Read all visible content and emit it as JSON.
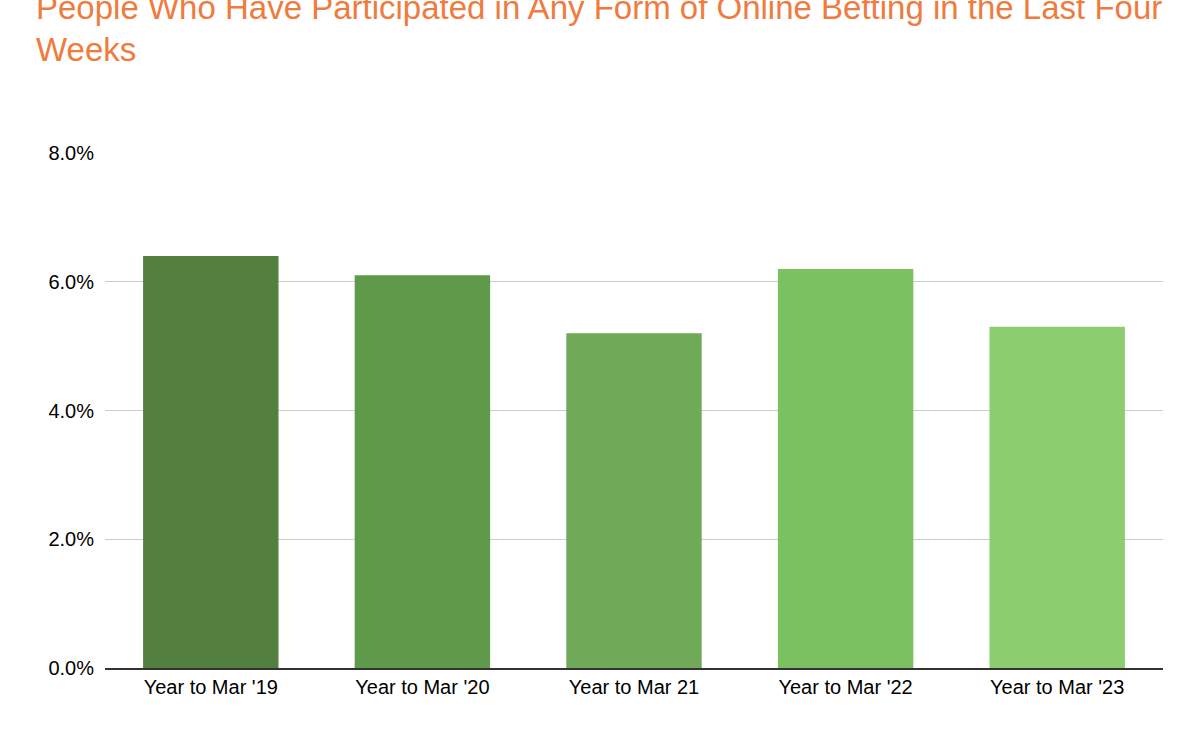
{
  "chart_data": {
    "type": "bar",
    "title": "People Who Have Participated in Any Form of Online Betting in the Last Four Weeks",
    "categories": [
      "Year to Mar '19",
      "Year to Mar '20",
      "Year to Mar 21",
      "Year to Mar '22",
      "Year to Mar '23"
    ],
    "values": [
      6.4,
      6.1,
      5.2,
      6.2,
      5.3
    ],
    "colors": [
      "#537f3f",
      "#5f9a4a",
      "#70aa58",
      "#7cc161",
      "#8ccd6f"
    ],
    "ylim": [
      0,
      8
    ],
    "yticks": [
      {
        "value": 0,
        "label": "0.0%"
      },
      {
        "value": 2,
        "label": "2.0%"
      },
      {
        "value": 4,
        "label": "4.0%"
      },
      {
        "value": 6,
        "label": "6.0%"
      },
      {
        "value": 8,
        "label": "8.0%"
      }
    ],
    "grid": true
  }
}
